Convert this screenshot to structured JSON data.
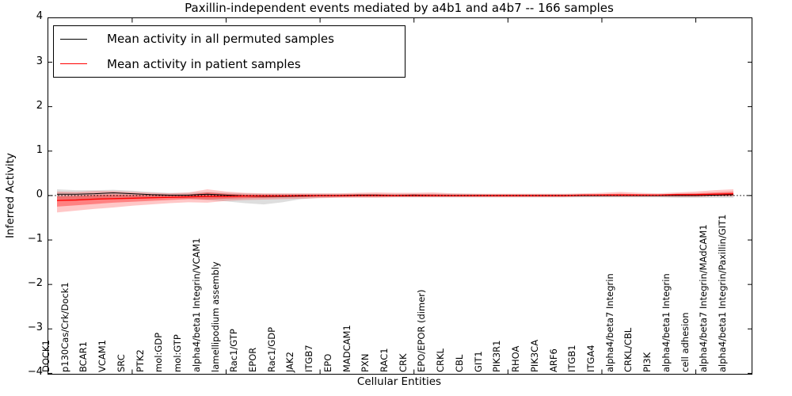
{
  "title": "Paxillin-independent events mediated by a4b1 and a4b7 -- 166 samples",
  "axes": {
    "ylabel": "Inferred Activity",
    "xlabel": "Cellular Entities",
    "ylim": [
      -4,
      4
    ],
    "yticks": [
      {
        "value": 4,
        "label": "4"
      },
      {
        "value": 3,
        "label": "3"
      },
      {
        "value": 2,
        "label": "2"
      },
      {
        "value": 1,
        "label": "1"
      },
      {
        "value": 0,
        "label": "0"
      },
      {
        "value": -1,
        "label": "−1"
      },
      {
        "value": -2,
        "label": "−2"
      },
      {
        "value": -3,
        "label": "−3"
      },
      {
        "value": -4,
        "label": "−4"
      }
    ],
    "xtick_major_positions": [
      5,
      10,
      15,
      20,
      25,
      30,
      35
    ]
  },
  "legend": {
    "entries": [
      {
        "label": "Mean activity in all permuted samples",
        "color": "#000000"
      },
      {
        "label": "Mean activity in patient samples",
        "color": "#ff0000"
      }
    ]
  },
  "chart_data": {
    "type": "line",
    "title": "Paxillin-independent events mediated by a4b1 and a4b7 -- 166 samples",
    "xlabel": "Cellular Entities",
    "ylabel": "Inferred Activity",
    "ylim": [
      -4,
      4
    ],
    "grid": false,
    "legend_position": "upper-left",
    "zero_line": {
      "style": "dotted",
      "color": "#000000",
      "y": 0
    },
    "x_categories": [
      "DOCK1",
      "p130Cas/Crk/Dock1",
      "BCAR1",
      "VCAM1",
      "SRC",
      "PTK2",
      "mol:GDP",
      "mol:GTP",
      "alpha4/beta1 Integrin/VCAM1",
      "lamellipodium assembly",
      "Rac1/GTP",
      "EPOR",
      "Rac1/GDP",
      "JAK2",
      "ITGB7",
      "EPO",
      "MADCAM1",
      "PXN",
      "RAC1",
      "CRK",
      "EPO/EPOR (dimer)",
      "CRKL",
      "CBL",
      "GIT1",
      "PIK3R1",
      "RHOA",
      "PIK3CA",
      "ARF6",
      "ITGB1",
      "ITGA4",
      "alpha4/beta7 Integrin",
      "CRKL/CBL",
      "PI3K",
      "alpha4/beta1 Integrin",
      "cell adhesion",
      "alpha4/beta7 Integrin/MAdCAM1",
      "alpha4/beta1 Integrin/Paxillin/GIT1"
    ],
    "series": [
      {
        "name": "Mean activity in all permuted samples",
        "color": "#000000",
        "width": 1,
        "values": [
          0.03,
          0.03,
          0.04,
          0.06,
          0.04,
          0.02,
          0.01,
          0.01,
          0.03,
          0.01,
          -0.01,
          -0.02,
          -0.02,
          -0.01,
          0,
          0,
          0.01,
          0.01,
          0,
          0.01,
          0,
          0,
          0,
          0,
          0,
          0,
          0,
          0,
          0,
          0,
          0,
          0,
          0,
          0,
          0,
          0.01,
          0.02
        ]
      },
      {
        "name": "Mean activity in patient samples",
        "color": "#ff0000",
        "width": 1.4,
        "values": [
          -0.11,
          -0.1,
          -0.08,
          -0.07,
          -0.06,
          -0.05,
          -0.04,
          -0.03,
          -0.02,
          -0.02,
          -0.01,
          -0.01,
          -0.01,
          0,
          0,
          0,
          0,
          0,
          0,
          0,
          0,
          0,
          0,
          0,
          0,
          0,
          0,
          0,
          0.01,
          0.01,
          0.01,
          0.01,
          0.01,
          0.02,
          0.02,
          0.03,
          0.04
        ]
      }
    ],
    "bands": [
      {
        "name": "permuted-samples-spread",
        "color": "#000000",
        "alpha": 0.13,
        "upper": [
          0.14,
          0.12,
          0.12,
          0.13,
          0.11,
          0.08,
          0.06,
          0.06,
          0.08,
          0.06,
          0.05,
          0.04,
          0.04,
          0.04,
          0.04,
          0.04,
          0.04,
          0.04,
          0.04,
          0.04,
          0.04,
          0.04,
          0.04,
          0.03,
          0.03,
          0.03,
          0.03,
          0.03,
          0.03,
          0.03,
          0.03,
          0.03,
          0.03,
          0.04,
          0.04,
          0.04,
          0.05
        ],
        "lower": [
          -0.08,
          -0.09,
          -0.07,
          -0.05,
          -0.05,
          -0.05,
          -0.05,
          -0.07,
          -0.1,
          -0.13,
          -0.17,
          -0.2,
          -0.15,
          -0.08,
          -0.05,
          -0.04,
          -0.04,
          -0.04,
          -0.04,
          -0.04,
          -0.04,
          -0.04,
          -0.04,
          -0.04,
          -0.04,
          -0.04,
          -0.04,
          -0.04,
          -0.04,
          -0.04,
          -0.04,
          -0.04,
          -0.04,
          -0.05,
          -0.05,
          -0.05,
          -0.05
        ]
      },
      {
        "name": "patient-samples-spread-outer",
        "color": "#ff0000",
        "alpha": 0.22,
        "upper": [
          0.09,
          0.08,
          0.1,
          0.1,
          0.08,
          0.06,
          0.05,
          0.07,
          0.14,
          0.09,
          0.06,
          0.05,
          0.05,
          0.05,
          0.05,
          0.05,
          0.06,
          0.07,
          0.06,
          0.06,
          0.07,
          0.05,
          0.04,
          0.04,
          0.04,
          0.04,
          0.04,
          0.04,
          0.05,
          0.06,
          0.08,
          0.06,
          0.05,
          0.07,
          0.09,
          0.12,
          0.14
        ],
        "lower": [
          -0.38,
          -0.34,
          -0.3,
          -0.27,
          -0.23,
          -0.2,
          -0.17,
          -0.15,
          -0.16,
          -0.12,
          -0.1,
          -0.09,
          -0.08,
          -0.07,
          -0.06,
          -0.05,
          -0.05,
          -0.05,
          -0.04,
          -0.04,
          -0.04,
          -0.04,
          -0.04,
          -0.04,
          -0.04,
          -0.04,
          -0.04,
          -0.04,
          -0.03,
          -0.03,
          -0.03,
          -0.03,
          -0.03,
          -0.03,
          -0.03,
          -0.02,
          -0.02
        ]
      },
      {
        "name": "patient-samples-spread-inner",
        "color": "#ff0000",
        "alpha": 0.35,
        "upper": [
          -0.02,
          -0.01,
          0.01,
          0.02,
          0.01,
          0.01,
          0.01,
          0.02,
          0.07,
          0.04,
          0.02,
          0.02,
          0.02,
          0.02,
          0.02,
          0.02,
          0.03,
          0.03,
          0.02,
          0.03,
          0.03,
          0.02,
          0.02,
          0.02,
          0.02,
          0.02,
          0.02,
          0.02,
          0.02,
          0.03,
          0.04,
          0.03,
          0.02,
          0.04,
          0.05,
          0.07,
          0.09
        ],
        "lower": [
          -0.25,
          -0.22,
          -0.19,
          -0.16,
          -0.14,
          -0.12,
          -0.1,
          -0.08,
          -0.09,
          -0.07,
          -0.06,
          -0.05,
          -0.04,
          -0.04,
          -0.03,
          -0.03,
          -0.02,
          -0.02,
          -0.02,
          -0.02,
          -0.02,
          -0.02,
          -0.02,
          -0.02,
          -0.02,
          -0.02,
          -0.02,
          -0.02,
          -0.01,
          -0.01,
          -0.01,
          -0.01,
          -0.01,
          -0.01,
          -0.01,
          0,
          0
        ]
      }
    ]
  }
}
